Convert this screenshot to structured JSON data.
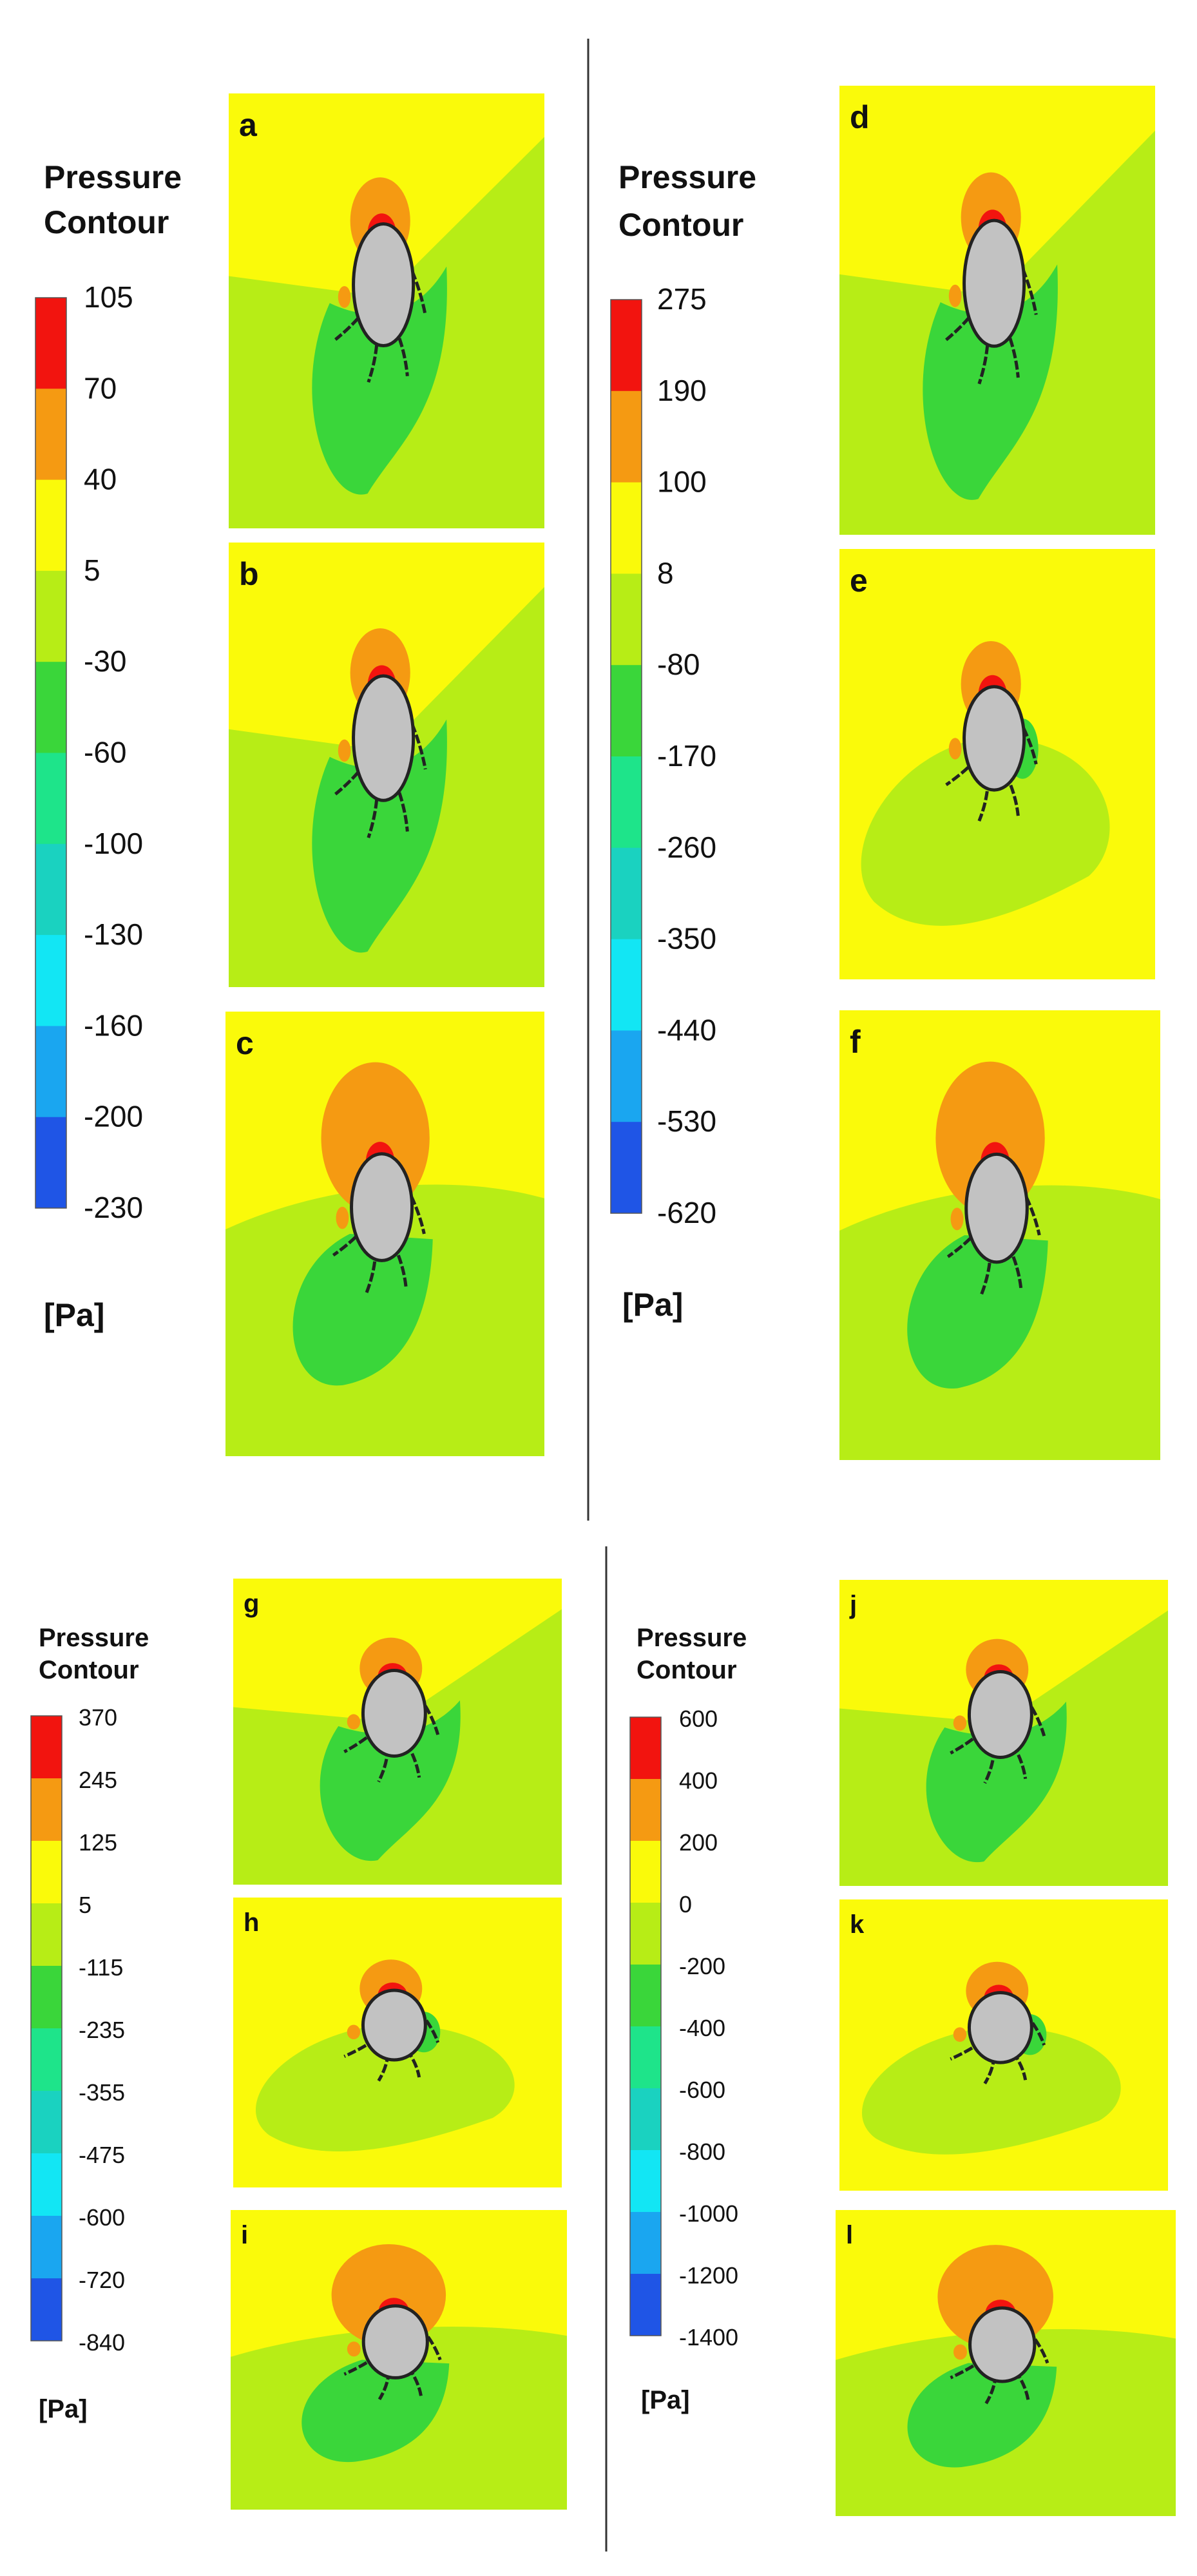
{
  "colors": {
    "red": "#f2140f",
    "orange": "#f59a12",
    "yellow": "#fafa0a",
    "yellow_green": "#b7ed16",
    "green": "#3ad63a",
    "teal_green": "#1ee48a",
    "teal": "#1ad2c0",
    "cyan": "#12e6f4",
    "light_blue": "#1aa6f0",
    "blue": "#1f55e6",
    "body": "#c2c2c2"
  },
  "legends": [
    {
      "title_line1": "Pressure",
      "title_line2": "Contour",
      "unit": "[Pa]",
      "ticks": [
        "105",
        "70",
        "40",
        "5",
        "-30",
        "-60",
        "-100",
        "-130",
        "-160",
        "-200",
        "-230"
      ]
    },
    {
      "title_line1": "Pressure",
      "title_line2": "Contour",
      "unit": "[Pa]",
      "ticks": [
        "275",
        "190",
        "100",
        "8",
        "-80",
        "-170",
        "-260",
        "-350",
        "-440",
        "-530",
        "-620"
      ]
    },
    {
      "title_line1": "Pressure",
      "title_line2": "Contour",
      "unit": "[Pa]",
      "ticks": [
        "370",
        "245",
        "125",
        "5",
        "-115",
        "-235",
        "-355",
        "-475",
        "-600",
        "-720",
        "-840"
      ]
    },
    {
      "title_line1": "Pressure",
      "title_line2": "Contour",
      "unit": "[Pa]",
      "ticks": [
        "600",
        "400",
        "200",
        "0",
        "-200",
        "-400",
        "-600",
        "-800",
        "-1000",
        "-1200",
        "-1400"
      ]
    }
  ],
  "panels": [
    {
      "label": "a",
      "variant": "tilted"
    },
    {
      "label": "b",
      "variant": "tilted"
    },
    {
      "label": "c",
      "variant": "wake"
    },
    {
      "label": "d",
      "variant": "tilted"
    },
    {
      "label": "e",
      "variant": "cloud"
    },
    {
      "label": "f",
      "variant": "wake"
    },
    {
      "label": "g",
      "variant": "tilted"
    },
    {
      "label": "h",
      "variant": "cloud"
    },
    {
      "label": "i",
      "variant": "wake"
    },
    {
      "label": "j",
      "variant": "tilted"
    },
    {
      "label": "k",
      "variant": "cloud"
    },
    {
      "label": "l",
      "variant": "wake"
    }
  ]
}
